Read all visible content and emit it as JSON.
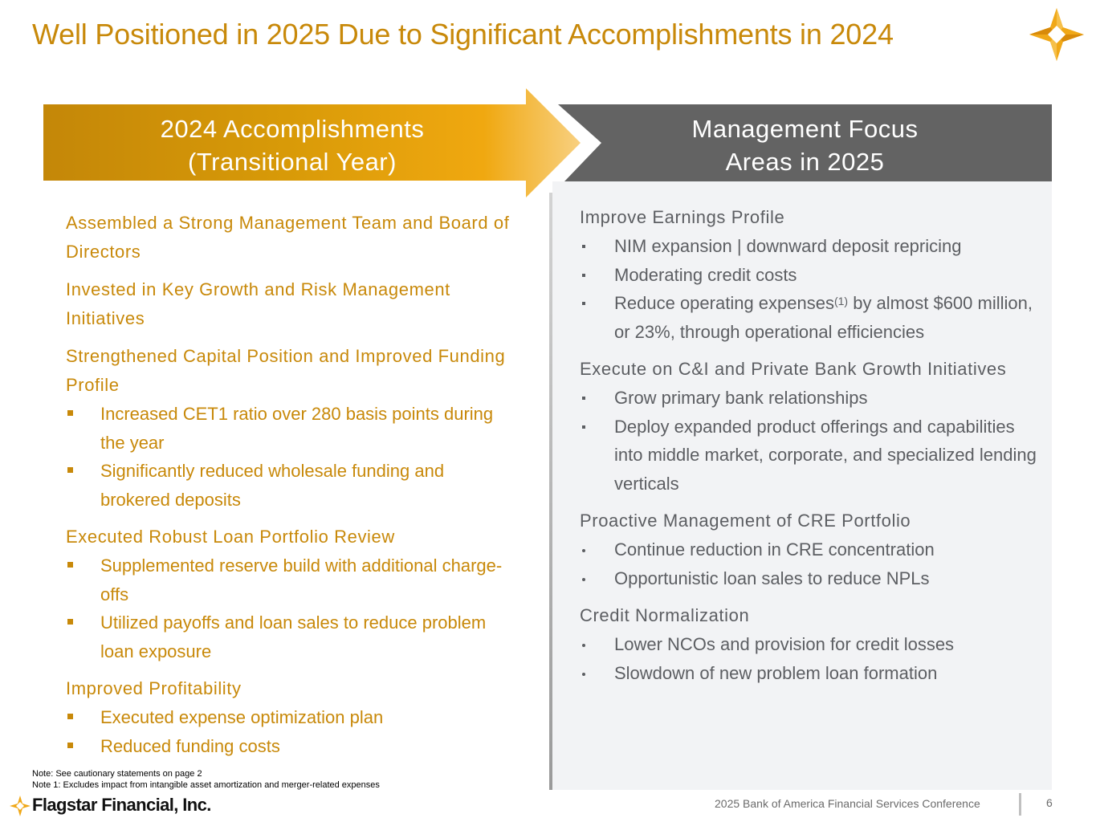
{
  "title": "Well Positioned in 2025 Due to Significant Accomplishments in 2024",
  "colors": {
    "gold": "#C8890A",
    "gold_light": "#F5C96A",
    "banner_gray": "#636363",
    "panel_gray": "#F2F3F5",
    "text_gray": "#5c5e62"
  },
  "left_banner": {
    "line1": "2024 Accomplishments",
    "line2": "(Transitional Year)"
  },
  "right_banner": {
    "line1": "Management Focus",
    "line2": "Areas in 2025"
  },
  "accomplishments": [
    {
      "heading": "Assembled a Strong Management Team and Board of Directors",
      "bullets": []
    },
    {
      "heading": "Invested in Key Growth and Risk Management Initiatives",
      "bullets": []
    },
    {
      "heading": "Strengthened Capital Position and Improved Funding Profile",
      "bullets": [
        "Increased CET1 ratio over 280 basis points during the year",
        "Significantly reduced wholesale funding and brokered deposits"
      ]
    },
    {
      "heading": "Executed Robust Loan Portfolio Review",
      "bullets": [
        "Supplemented reserve build with additional charge-offs",
        "Utilized payoffs and loan sales to reduce problem loan exposure"
      ]
    },
    {
      "heading": "Improved Profitability",
      "bullets": [
        "Executed expense optimization plan",
        "Reduced funding costs"
      ]
    }
  ],
  "focus_areas": [
    {
      "heading": "Improve Earnings Profile",
      "bullets": [
        "NIM expansion | downward deposit repricing",
        "Moderating credit costs"
      ],
      "expense_bullet": {
        "pre": "Reduce operating expenses",
        "sup": "(1)",
        "post": " by almost $600 million, or 23%, through operational efficiencies"
      }
    },
    {
      "heading": "Execute on C&I and Private Bank Growth Initiatives",
      "bullets": [
        "Grow primary bank relationships",
        "Deploy expanded product offerings and capabilities into middle market, corporate, and specialized lending verticals"
      ]
    },
    {
      "heading": "Proactive Management of CRE Portfolio",
      "bullets": [
        "Continue reduction in CRE concentration",
        "Opportunistic loan sales to reduce NPLs"
      ]
    },
    {
      "heading": "Credit Normalization",
      "bullets": [
        "Lower NCOs and provision for credit losses",
        "Slowdown of new problem loan formation"
      ]
    }
  ],
  "notes": {
    "note1": "Note: See cautionary statements on page 2",
    "note2": "Note 1: Excludes impact from intangible asset amortization and merger-related expenses"
  },
  "footer": {
    "company": "Flagstar Financial, Inc.",
    "conference": "2025 Bank of America Financial Services Conference",
    "page": "6"
  },
  "icons": {
    "logo": "flagstar-star-icon"
  }
}
